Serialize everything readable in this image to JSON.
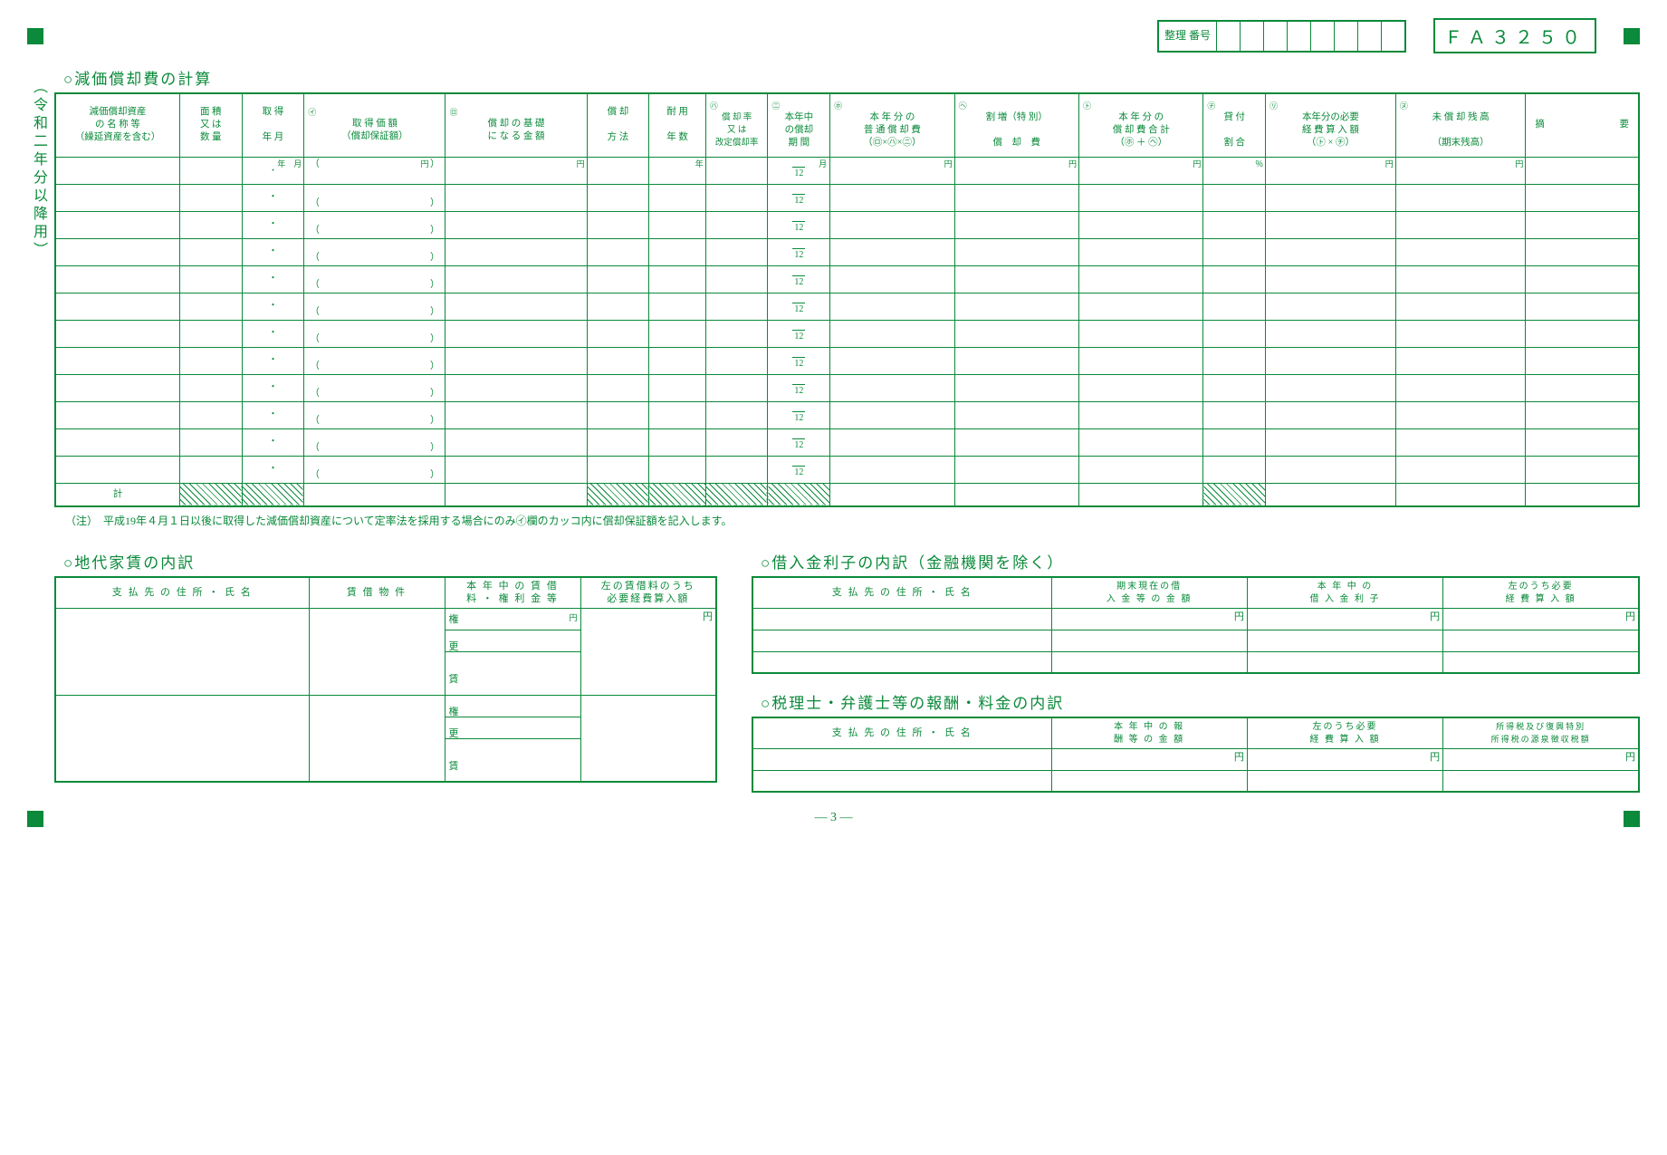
{
  "header": {
    "seiri_label": "整理\n番号",
    "fa_code": "ＦＡ３２５０"
  },
  "side_label": "（令和二年分以降用）",
  "section1": {
    "title": "○減価償却費の計算",
    "headers": {
      "h1": "減価償却資産\nの 名 称 等\n（繰延資産を含む）",
      "h2": "面 積\n又 は\n数 量",
      "h3": "取 得\n\n年 月",
      "h4_mark": "㋑",
      "h4": "取 得 価 額\n（償却保証額）",
      "h5_mark": "㋺",
      "h5": "償 却 の 基 礎\nに な る 金 額",
      "h6": "償 却\n\n方 法",
      "h7": "耐 用\n\n年 数",
      "h8_mark": "㋩",
      "h8": "償 却 率\n又 は\n改定償却率",
      "h9_mark": "㋥",
      "h9": "本年中\nの償却\n期 間",
      "h10_mark": "㋭",
      "h10": "本 年 分 の\n普 通 償 却 費\n（㋺×㋩×㋥）",
      "h11_mark": "㋬",
      "h11": "割 増（特 別）\n\n償　却　費",
      "h12_mark": "㋣",
      "h12": "本 年 分 の\n償 却 費 合 計\n（㋭ ＋ ㋬）",
      "h13_mark": "㋠",
      "h13": "貸 付\n\n割 合",
      "h14_mark": "㋷",
      "h14": "本年分の必要\n経 費 算 入 額\n（㋣ × ㋠）",
      "h15_mark": "㋦",
      "h15": "未 償 却 残 高\n\n（期末残高）",
      "h16": "摘　　　要"
    },
    "units": {
      "nen_getsu": "年　月",
      "yen": "円",
      "nen": "年",
      "getsu": "月",
      "pct": "％"
    },
    "frac_denom": "12",
    "total_label": "計",
    "row_count": 12,
    "note": "（注）　平成19年４月１日以後に取得した減価償却資産について定率法を採用する場合にのみ㋑欄のカッコ内に償却保証額を記入します。"
  },
  "section2": {
    "title": "○地代家賃の内訳",
    "h1": "支 払 先 の 住 所 ・ 氏 名",
    "h2": "賃 借 物 件",
    "h3": "本 年 中 の 賃 借\n料 ・ 権 利 金 等",
    "h4": "左の賃借料のうち\n必要経費算入額",
    "ken": "権",
    "ko": "更",
    "chin": "賃",
    "yen": "円"
  },
  "section3": {
    "title": "○借入金利子の内訳（金融機関を除く）",
    "h1": "支 払 先 の 住 所 ・ 氏 名",
    "h2": "期末現在の借\n入 金 等 の 金 額",
    "h3": "本 年 中 の\n借 入 金 利 子",
    "h4": "左のうち必要\n経 費 算 入 額",
    "yen": "円"
  },
  "section4": {
    "title": "○税理士・弁護士等の報酬・料金の内訳",
    "h1": "支 払 先 の 住 所 ・ 氏 名",
    "h2": "本 年 中 の 報\n酬 等 の 金 額",
    "h3": "左のうち必要\n経 費 算 入 額",
    "h4": "所得税及び復興特別\n所得税の源泉徴収税額",
    "yen": "円"
  },
  "page_number": "― 3 ―"
}
